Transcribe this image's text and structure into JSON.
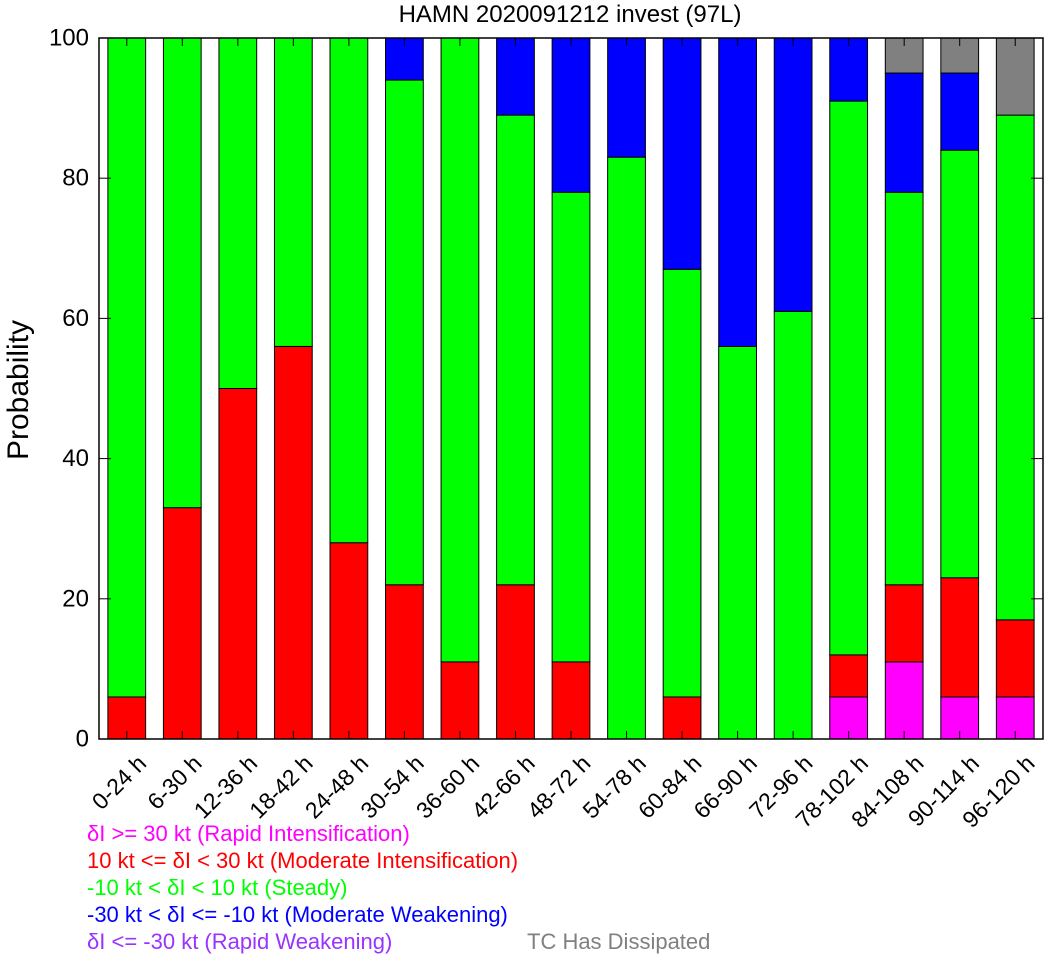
{
  "chart_data": {
    "type": "bar",
    "stacked": true,
    "title": "HAMN 2020091212 invest (97L)",
    "ylabel": "Probability",
    "xlabel": "",
    "ylim": [
      0,
      100
    ],
    "yticks": [
      0,
      20,
      40,
      60,
      80,
      100
    ],
    "categories": [
      "0-24 h",
      "6-30 h",
      "12-36 h",
      "18-42 h",
      "24-48 h",
      "30-54 h",
      "36-60 h",
      "42-66 h",
      "48-72 h",
      "54-78 h",
      "60-84 h",
      "66-90 h",
      "72-96 h",
      "78-102 h",
      "84-108 h",
      "90-114 h",
      "96-120 h"
    ],
    "series": [
      {
        "key": "ri",
        "color": "#ff00ff",
        "values": [
          0,
          0,
          0,
          0,
          0,
          0,
          0,
          0,
          0,
          0,
          0,
          0,
          0,
          6,
          11,
          6,
          6
        ]
      },
      {
        "key": "mi",
        "color": "#ff0000",
        "values": [
          6,
          33,
          50,
          56,
          28,
          22,
          11,
          22,
          11,
          0,
          6,
          0,
          0,
          6,
          11,
          17,
          11
        ]
      },
      {
        "key": "steady",
        "color": "#00ff00",
        "values": [
          94,
          67,
          50,
          44,
          72,
          72,
          89,
          67,
          67,
          83,
          61,
          56,
          61,
          79,
          56,
          61,
          72
        ]
      },
      {
        "key": "mw",
        "color": "#0000ff",
        "values": [
          0,
          0,
          0,
          0,
          0,
          6,
          0,
          11,
          22,
          17,
          33,
          44,
          39,
          9,
          17,
          11,
          0
        ]
      },
      {
        "key": "rw",
        "color": "#9933ff",
        "values": [
          0,
          0,
          0,
          0,
          0,
          0,
          0,
          0,
          0,
          0,
          0,
          0,
          0,
          0,
          0,
          0,
          0
        ]
      },
      {
        "key": "diss",
        "color": "#808080",
        "values": [
          0,
          0,
          0,
          0,
          0,
          0,
          0,
          0,
          0,
          0,
          0,
          0,
          0,
          0,
          5,
          5,
          11
        ]
      }
    ]
  },
  "legend": {
    "ri": {
      "label": "δI >= 30 kt (Rapid Intensification)",
      "color": "#ff00ff"
    },
    "mi": {
      "label": "10 kt <= δI < 30 kt (Moderate Intensification)",
      "color": "#ff0000"
    },
    "steady": {
      "label": "-10 kt < δI < 10 kt (Steady)",
      "color": "#00ff00"
    },
    "mw": {
      "label": "-30 kt < δI <= -10 kt (Moderate Weakening)",
      "color": "#0000ff"
    },
    "rw": {
      "label": "δI <= -30 kt (Rapid Weakening)",
      "color": "#9933ff"
    },
    "diss": {
      "label": "TC Has Dissipated",
      "color": "#808080"
    }
  }
}
